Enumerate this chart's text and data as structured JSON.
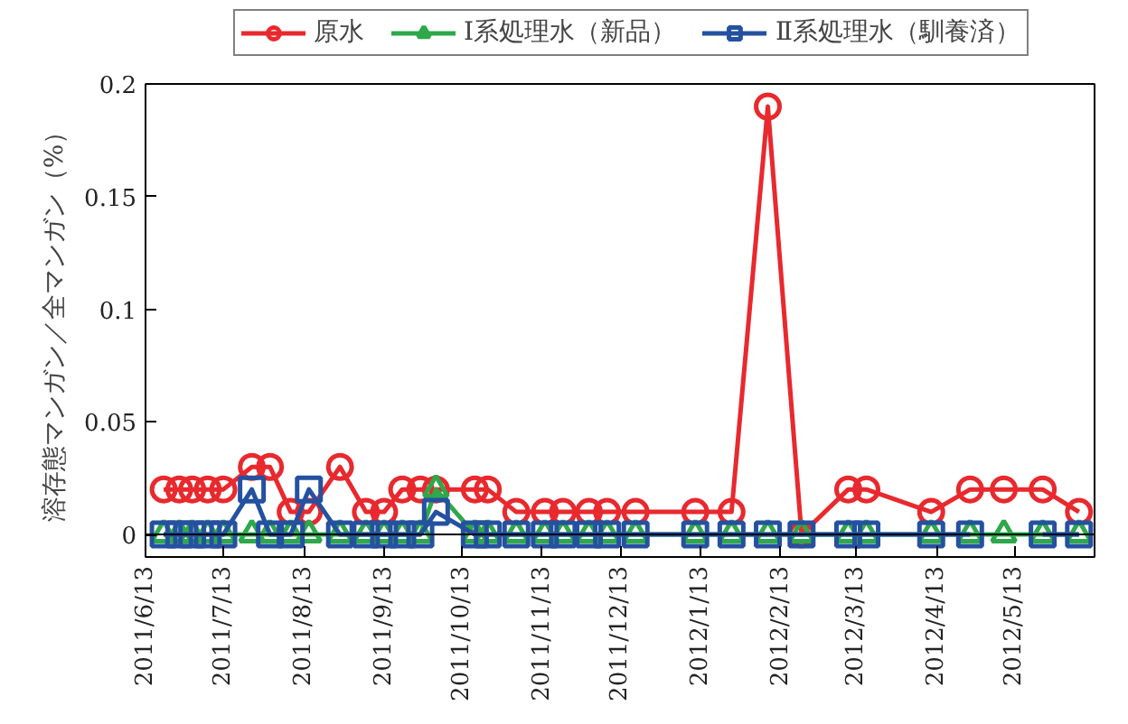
{
  "chart_data": {
    "type": "line",
    "ylabel": "溶存態マンガン／全マンガン（%）",
    "x": [
      "2011-06-20",
      "2011-06-26",
      "2011-07-01",
      "2011-07-07",
      "2011-07-13",
      "2011-07-24",
      "2011-07-31",
      "2011-08-08",
      "2011-08-15",
      "2011-08-27",
      "2011-09-06",
      "2011-09-13",
      "2011-09-20",
      "2011-09-27",
      "2011-10-03",
      "2011-10-18",
      "2011-10-23",
      "2011-11-03",
      "2011-11-14",
      "2011-11-21",
      "2011-12-01",
      "2011-12-08",
      "2011-12-19",
      "2012-01-11",
      "2012-01-25",
      "2012-02-08",
      "2012-02-21",
      "2012-03-10",
      "2012-03-17",
      "2012-04-11",
      "2012-04-26",
      "2012-05-09",
      "2012-05-24",
      "2012-06-07"
    ],
    "series": [
      {
        "name": "原水",
        "color": "#e8292e",
        "marker": "circle",
        "values": [
          0.02,
          0.02,
          0.02,
          0.02,
          0.02,
          0.03,
          0.03,
          0.01,
          0.01,
          0.03,
          0.01,
          0.01,
          0.02,
          0.02,
          0.02,
          0.02,
          0.02,
          0.01,
          0.01,
          0.01,
          0.01,
          0.01,
          0.01,
          0.01,
          0.01,
          0.19,
          0,
          0.02,
          0.02,
          0.01,
          0.02,
          0.02,
          0.02,
          0.01
        ]
      },
      {
        "name": "Ⅰ系処理水（新品）",
        "color": "#2ea84a",
        "marker": "triangle",
        "values": [
          0,
          0,
          0,
          0,
          0,
          0,
          0,
          0,
          0,
          0,
          0,
          0,
          0,
          0,
          0.02,
          0,
          0,
          0,
          0,
          0,
          0,
          0,
          0,
          0,
          0,
          0,
          0,
          0,
          0,
          0,
          0,
          0,
          0,
          0
        ]
      },
      {
        "name": "Ⅱ系処理水（馴養済）",
        "color": "#2451a0",
        "marker": "square",
        "values": [
          0,
          0,
          0,
          0,
          0,
          0.02,
          0,
          0,
          0.02,
          0,
          0,
          0,
          0,
          0,
          0.01,
          0,
          0,
          0,
          0,
          0,
          0,
          0,
          0,
          0,
          0,
          0,
          0,
          0,
          0,
          0,
          0,
          null,
          0,
          0
        ]
      }
    ],
    "xlim": [
      "2011-06-13",
      "2012-06-13"
    ],
    "xticks": [
      {
        "value": "2011-06-13",
        "label": "2011/6/13"
      },
      {
        "value": "2011-07-13",
        "label": "2011/7/13"
      },
      {
        "value": "2011-08-13",
        "label": "2011/8/13"
      },
      {
        "value": "2011-09-13",
        "label": "2011/9/13"
      },
      {
        "value": "2011-10-13",
        "label": "2011/10/13"
      },
      {
        "value": "2011-11-13",
        "label": "2011/11/13"
      },
      {
        "value": "2011-12-13",
        "label": "2011/12/13"
      },
      {
        "value": "2012-01-13",
        "label": "2012/1/13"
      },
      {
        "value": "2012-02-13",
        "label": "2012/2/13"
      },
      {
        "value": "2012-03-13",
        "label": "2012/3/13"
      },
      {
        "value": "2012-04-13",
        "label": "2012/4/13"
      },
      {
        "value": "2012-05-13",
        "label": "2012/5/13"
      }
    ],
    "ylim": [
      -0.01,
      0.2
    ],
    "yticks": [
      0,
      0.05,
      0.1,
      0.15,
      0.2
    ],
    "grid": false,
    "ref_lines": [
      {
        "axis": "y",
        "value": 0,
        "color": "#000000"
      }
    ],
    "legend": "top",
    "line_style": "solid"
  }
}
